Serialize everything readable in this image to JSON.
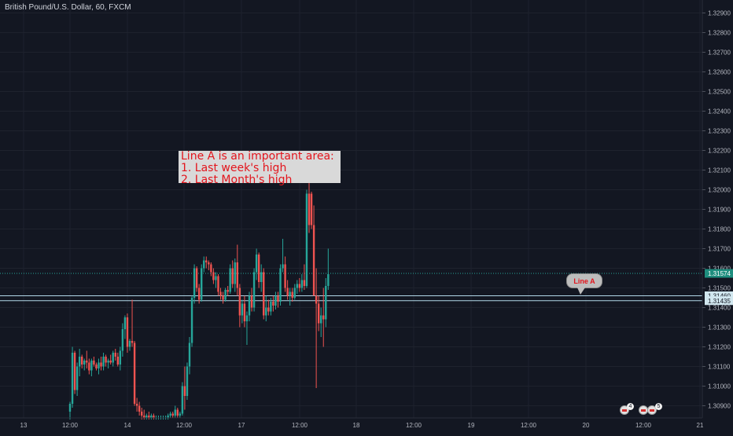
{
  "header": {
    "title": "British Pound/U.S. Dollar, 60, FXCM"
  },
  "annotation": {
    "lines": [
      "Line A is an important area:",
      "1. Last week's high",
      "2. Last Month's high"
    ]
  },
  "line_label": {
    "text": "Line A"
  },
  "colors": {
    "background": "#131722",
    "up": "#26a69a",
    "down": "#ef5350",
    "grid": "#1e222d",
    "line": "#b2d8e8",
    "text": "#b2b5be",
    "price_badge": "#1e8e7e"
  },
  "events": [
    {
      "icon": "flag-icon",
      "count": "4"
    },
    {
      "icon": "flag-icon",
      "count": ""
    },
    {
      "icon": "flag-icon",
      "count": "5"
    }
  ],
  "chart_data": {
    "type": "candlestick",
    "title": "British Pound/U.S. Dollar, 60, FXCM",
    "ylim": [
      1.3083,
      1.3293
    ],
    "y_ticks": [
      "1.32900",
      "1.32800",
      "1.32700",
      "1.32600",
      "1.32500",
      "1.32400",
      "1.32300",
      "1.32200",
      "1.32100",
      "1.32000",
      "1.31900",
      "1.31800",
      "1.31700",
      "1.31600",
      "1.31500",
      "1.31400",
      "1.31300",
      "1.31200",
      "1.31100",
      "1.31000",
      "1.30900"
    ],
    "x_ticks": [
      "13",
      "12:00",
      "14",
      "12:00",
      "17",
      "12:00",
      "18",
      "12:00",
      "19",
      "12:00",
      "20",
      "12:00",
      "21"
    ],
    "price_labels": [
      {
        "label": "1.31574",
        "value": 1.31574,
        "style": "current"
      },
      {
        "label": "1.31460",
        "value": 1.3146,
        "style": "line"
      },
      {
        "label": "1.31435",
        "value": 1.31435,
        "style": "line"
      }
    ],
    "horizontal_lines": [
      {
        "value": 1.31574,
        "style": "dotted"
      },
      {
        "value": 1.3146,
        "style": "solid"
      },
      {
        "value": 1.31435,
        "style": "solid"
      }
    ],
    "grid": true,
    "candles": [
      {
        "o": 1.3087,
        "h": 1.3092,
        "l": 1.3083,
        "c": 1.3091
      },
      {
        "o": 1.3091,
        "h": 1.312,
        "l": 1.3089,
        "c": 1.3117
      },
      {
        "o": 1.3117,
        "h": 1.3118,
        "l": 1.3096,
        "c": 1.3098
      },
      {
        "o": 1.3098,
        "h": 1.3112,
        "l": 1.3095,
        "c": 1.311
      },
      {
        "o": 1.311,
        "h": 1.3119,
        "l": 1.3105,
        "c": 1.3115
      },
      {
        "o": 1.3115,
        "h": 1.3116,
        "l": 1.3109,
        "c": 1.3111
      },
      {
        "o": 1.3111,
        "h": 1.3114,
        "l": 1.3108,
        "c": 1.3113
      },
      {
        "o": 1.3113,
        "h": 1.3118,
        "l": 1.3109,
        "c": 1.3112
      },
      {
        "o": 1.3112,
        "h": 1.3114,
        "l": 1.3106,
        "c": 1.3108
      },
      {
        "o": 1.3108,
        "h": 1.3114,
        "l": 1.3105,
        "c": 1.3113
      },
      {
        "o": 1.3113,
        "h": 1.3115,
        "l": 1.311,
        "c": 1.3111
      },
      {
        "o": 1.3111,
        "h": 1.3112,
        "l": 1.3108,
        "c": 1.3109
      },
      {
        "o": 1.3109,
        "h": 1.3114,
        "l": 1.3106,
        "c": 1.3112
      },
      {
        "o": 1.3112,
        "h": 1.3115,
        "l": 1.3108,
        "c": 1.311
      },
      {
        "o": 1.311,
        "h": 1.3117,
        "l": 1.3108,
        "c": 1.3115
      },
      {
        "o": 1.3115,
        "h": 1.3116,
        "l": 1.311,
        "c": 1.3112
      },
      {
        "o": 1.3112,
        "h": 1.3114,
        "l": 1.3109,
        "c": 1.3113
      },
      {
        "o": 1.3113,
        "h": 1.3116,
        "l": 1.3111,
        "c": 1.3112
      },
      {
        "o": 1.3112,
        "h": 1.3118,
        "l": 1.311,
        "c": 1.3117
      },
      {
        "o": 1.3117,
        "h": 1.3119,
        "l": 1.3113,
        "c": 1.3115
      },
      {
        "o": 1.3115,
        "h": 1.3117,
        "l": 1.311,
        "c": 1.3111
      },
      {
        "o": 1.3111,
        "h": 1.312,
        "l": 1.3108,
        "c": 1.3118
      },
      {
        "o": 1.3118,
        "h": 1.3132,
        "l": 1.3115,
        "c": 1.3129
      },
      {
        "o": 1.3129,
        "h": 1.3136,
        "l": 1.3124,
        "c": 1.3135
      },
      {
        "o": 1.3135,
        "h": 1.3137,
        "l": 1.3117,
        "c": 1.312
      },
      {
        "o": 1.312,
        "h": 1.3124,
        "l": 1.3118,
        "c": 1.3123
      },
      {
        "o": 1.3123,
        "h": 1.3144,
        "l": 1.312,
        "c": 1.3122
      },
      {
        "o": 1.3122,
        "h": 1.3123,
        "l": 1.309,
        "c": 1.3091
      },
      {
        "o": 1.3091,
        "h": 1.3094,
        "l": 1.3087,
        "c": 1.309
      },
      {
        "o": 1.309,
        "h": 1.3092,
        "l": 1.3085,
        "c": 1.3087
      },
      {
        "o": 1.3087,
        "h": 1.3089,
        "l": 1.3083,
        "c": 1.3085
      },
      {
        "o": 1.3085,
        "h": 1.3088,
        "l": 1.3083,
        "c": 1.3084
      },
      {
        "o": 1.3084,
        "h": 1.3086,
        "l": 1.3083,
        "c": 1.3085
      },
      {
        "o": 1.3085,
        "h": 1.3087,
        "l": 1.3083,
        "c": 1.3084
      },
      {
        "o": 1.3084,
        "h": 1.3086,
        "l": 1.3083,
        "c": 1.3085
      },
      {
        "o": 1.3085,
        "h": 1.3086,
        "l": 1.3083,
        "c": 1.3084
      },
      {
        "o": 1.3084,
        "h": 1.3085,
        "l": 1.3083,
        "c": 1.3084
      },
      {
        "o": 1.3084,
        "h": 1.3085,
        "l": 1.3083,
        "c": 1.3084
      },
      {
        "o": 1.3084,
        "h": 1.3085,
        "l": 1.3083,
        "c": 1.3084
      },
      {
        "o": 1.3084,
        "h": 1.3085,
        "l": 1.3083,
        "c": 1.3084
      },
      {
        "o": 1.3084,
        "h": 1.3085,
        "l": 1.3083,
        "c": 1.3084
      },
      {
        "o": 1.3084,
        "h": 1.3086,
        "l": 1.3083,
        "c": 1.3085
      },
      {
        "o": 1.3085,
        "h": 1.3087,
        "l": 1.3084,
        "c": 1.3086
      },
      {
        "o": 1.3086,
        "h": 1.3087,
        "l": 1.3084,
        "c": 1.3085
      },
      {
        "o": 1.3085,
        "h": 1.309,
        "l": 1.3084,
        "c": 1.3088
      },
      {
        "o": 1.3088,
        "h": 1.3089,
        "l": 1.3084,
        "c": 1.3085
      },
      {
        "o": 1.3085,
        "h": 1.3087,
        "l": 1.3084,
        "c": 1.3086
      },
      {
        "o": 1.3086,
        "h": 1.3102,
        "l": 1.3085,
        "c": 1.31
      },
      {
        "o": 1.31,
        "h": 1.311,
        "l": 1.3088,
        "c": 1.3095
      },
      {
        "o": 1.3095,
        "h": 1.3112,
        "l": 1.3093,
        "c": 1.311
      },
      {
        "o": 1.311,
        "h": 1.3125,
        "l": 1.3106,
        "c": 1.3122
      },
      {
        "o": 1.3122,
        "h": 1.3146,
        "l": 1.312,
        "c": 1.3145
      },
      {
        "o": 1.3145,
        "h": 1.3162,
        "l": 1.3142,
        "c": 1.316
      },
      {
        "o": 1.316,
        "h": 1.3161,
        "l": 1.3148,
        "c": 1.315
      },
      {
        "o": 1.315,
        "h": 1.3152,
        "l": 1.3142,
        "c": 1.3144
      },
      {
        "o": 1.3144,
        "h": 1.3162,
        "l": 1.3143,
        "c": 1.316
      },
      {
        "o": 1.316,
        "h": 1.3166,
        "l": 1.3158,
        "c": 1.3164
      },
      {
        "o": 1.3164,
        "h": 1.3166,
        "l": 1.316,
        "c": 1.3163
      },
      {
        "o": 1.3163,
        "h": 1.3164,
        "l": 1.3159,
        "c": 1.3162
      },
      {
        "o": 1.3162,
        "h": 1.3163,
        "l": 1.3156,
        "c": 1.3158
      },
      {
        "o": 1.3158,
        "h": 1.316,
        "l": 1.3152,
        "c": 1.3154
      },
      {
        "o": 1.3154,
        "h": 1.3158,
        "l": 1.315,
        "c": 1.3156
      },
      {
        "o": 1.3156,
        "h": 1.3157,
        "l": 1.3146,
        "c": 1.3148
      },
      {
        "o": 1.3148,
        "h": 1.315,
        "l": 1.3144,
        "c": 1.3146
      },
      {
        "o": 1.3146,
        "h": 1.3148,
        "l": 1.3142,
        "c": 1.3144
      },
      {
        "o": 1.3144,
        "h": 1.315,
        "l": 1.3143,
        "c": 1.3149
      },
      {
        "o": 1.3149,
        "h": 1.3151,
        "l": 1.3146,
        "c": 1.3148
      },
      {
        "o": 1.3148,
        "h": 1.3162,
        "l": 1.3147,
        "c": 1.316
      },
      {
        "o": 1.316,
        "h": 1.3164,
        "l": 1.315,
        "c": 1.3152
      },
      {
        "o": 1.3152,
        "h": 1.3165,
        "l": 1.3148,
        "c": 1.3163
      },
      {
        "o": 1.3163,
        "h": 1.3172,
        "l": 1.3146,
        "c": 1.315
      },
      {
        "o": 1.315,
        "h": 1.3152,
        "l": 1.313,
        "c": 1.3136
      },
      {
        "o": 1.3136,
        "h": 1.3144,
        "l": 1.3132,
        "c": 1.3142
      },
      {
        "o": 1.3142,
        "h": 1.3146,
        "l": 1.313,
        "c": 1.3133
      },
      {
        "o": 1.3133,
        "h": 1.3138,
        "l": 1.3121,
        "c": 1.3136
      },
      {
        "o": 1.3136,
        "h": 1.3148,
        "l": 1.3133,
        "c": 1.3146
      },
      {
        "o": 1.3146,
        "h": 1.315,
        "l": 1.3138,
        "c": 1.314
      },
      {
        "o": 1.314,
        "h": 1.316,
        "l": 1.3138,
        "c": 1.3158
      },
      {
        "o": 1.3158,
        "h": 1.317,
        "l": 1.3154,
        "c": 1.3167
      },
      {
        "o": 1.3167,
        "h": 1.3168,
        "l": 1.315,
        "c": 1.3153
      },
      {
        "o": 1.3153,
        "h": 1.3162,
        "l": 1.3148,
        "c": 1.3158
      },
      {
        "o": 1.3158,
        "h": 1.316,
        "l": 1.3134,
        "c": 1.3136
      },
      {
        "o": 1.3136,
        "h": 1.3146,
        "l": 1.3133,
        "c": 1.314
      },
      {
        "o": 1.314,
        "h": 1.3144,
        "l": 1.3136,
        "c": 1.3138
      },
      {
        "o": 1.3138,
        "h": 1.3145,
        "l": 1.3136,
        "c": 1.3143
      },
      {
        "o": 1.3143,
        "h": 1.3146,
        "l": 1.3138,
        "c": 1.3141
      },
      {
        "o": 1.3141,
        "h": 1.3148,
        "l": 1.3139,
        "c": 1.3146
      },
      {
        "o": 1.3146,
        "h": 1.3148,
        "l": 1.314,
        "c": 1.3143
      },
      {
        "o": 1.3143,
        "h": 1.3162,
        "l": 1.3141,
        "c": 1.316
      },
      {
        "o": 1.316,
        "h": 1.3175,
        "l": 1.3158,
        "c": 1.3162
      },
      {
        "o": 1.3162,
        "h": 1.3166,
        "l": 1.3148,
        "c": 1.315
      },
      {
        "o": 1.315,
        "h": 1.3154,
        "l": 1.3144,
        "c": 1.3146
      },
      {
        "o": 1.3146,
        "h": 1.315,
        "l": 1.3141,
        "c": 1.3148
      },
      {
        "o": 1.3148,
        "h": 1.315,
        "l": 1.3143,
        "c": 1.3145
      },
      {
        "o": 1.3145,
        "h": 1.3152,
        "l": 1.3144,
        "c": 1.315
      },
      {
        "o": 1.315,
        "h": 1.3154,
        "l": 1.3147,
        "c": 1.3152
      },
      {
        "o": 1.3152,
        "h": 1.3155,
        "l": 1.3148,
        "c": 1.315
      },
      {
        "o": 1.315,
        "h": 1.3157,
        "l": 1.3148,
        "c": 1.3154
      },
      {
        "o": 1.3154,
        "h": 1.3162,
        "l": 1.3149,
        "c": 1.3151
      },
      {
        "o": 1.3151,
        "h": 1.32,
        "l": 1.315,
        "c": 1.3198
      },
      {
        "o": 1.3198,
        "h": 1.3216,
        "l": 1.3178,
        "c": 1.3182
      },
      {
        "o": 1.3198,
        "h": 1.3199,
        "l": 1.318,
        "c": 1.3182
      },
      {
        "o": 1.3182,
        "h": 1.3192,
        "l": 1.3148,
        "c": 1.3146
      },
      {
        "o": 1.3146,
        "h": 1.316,
        "l": 1.3099,
        "c": 1.3142
      },
      {
        "o": 1.3142,
        "h": 1.3146,
        "l": 1.3128,
        "c": 1.3132
      },
      {
        "o": 1.3132,
        "h": 1.314,
        "l": 1.3125,
        "c": 1.3136
      },
      {
        "o": 1.3136,
        "h": 1.315,
        "l": 1.312,
        "c": 1.3134
      },
      {
        "o": 1.3134,
        "h": 1.3155,
        "l": 1.313,
        "c": 1.3151
      },
      {
        "o": 1.3151,
        "h": 1.317,
        "l": 1.3149,
        "c": 1.3157
      }
    ]
  }
}
